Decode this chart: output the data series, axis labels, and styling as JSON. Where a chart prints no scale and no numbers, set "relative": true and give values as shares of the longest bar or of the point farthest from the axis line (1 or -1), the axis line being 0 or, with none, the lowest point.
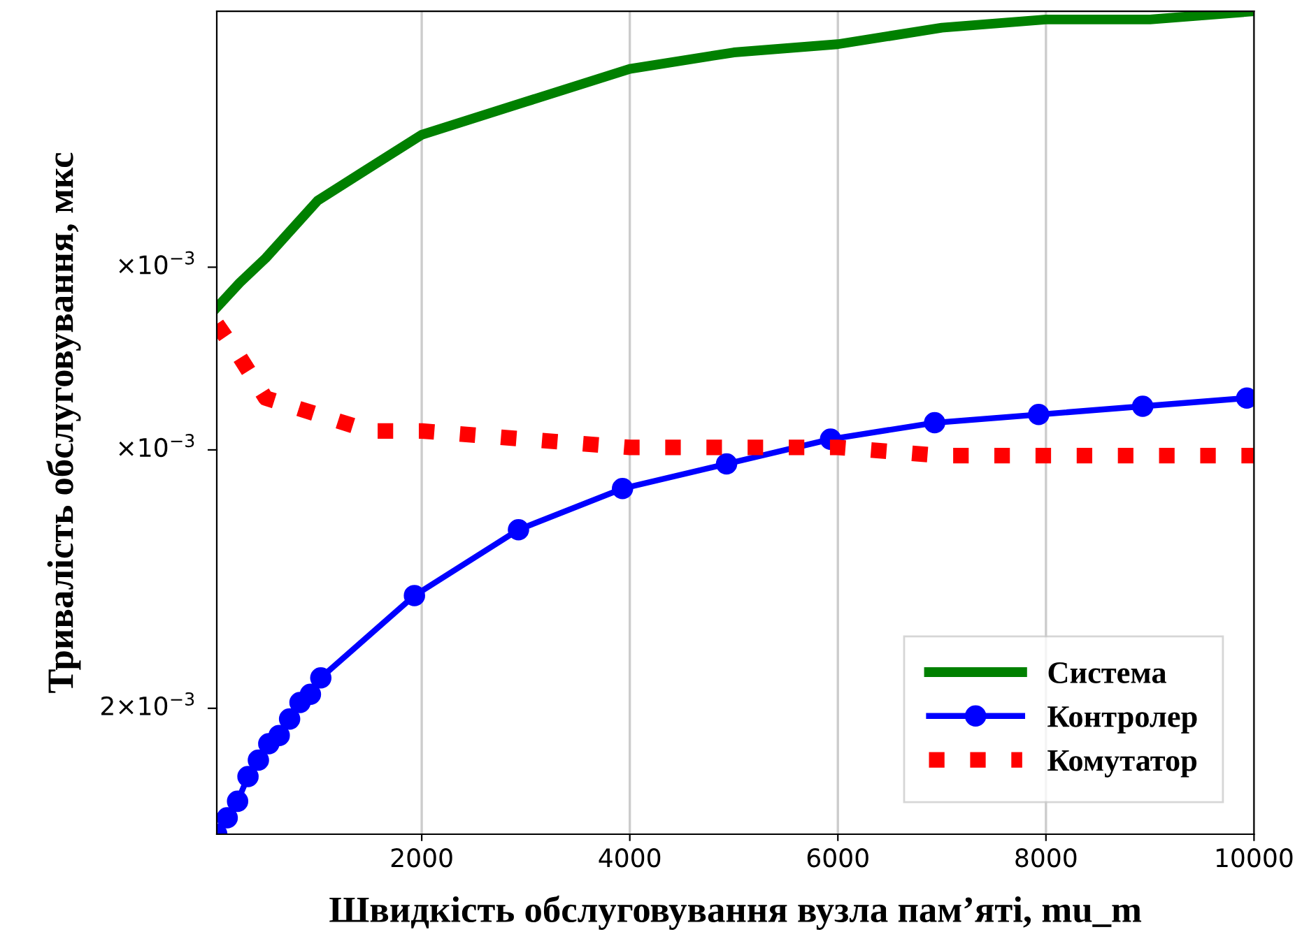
{
  "chart_data": {
    "type": "line",
    "xlabel": "Швидкість обслуговування вузла пам’яті, mu_m",
    "ylabel": "Тривалість обслуговування, мкс",
    "relative": true,
    "grid": "x",
    "legend": "bottom right",
    "xlim": [
      30,
      10000
    ],
    "xticks": [
      2000,
      4000,
      6000,
      8000,
      10000
    ],
    "annotations": [
      "2×10$^{−3}$",
      "×10$^{−3}$",
      "×10$^{−3}$"
    ],
    "series": [
      {
        "name": "Система",
        "color": "#008000",
        "line_style": "solid",
        "marker": "none",
        "x": [
          30,
          250,
          500,
          1000,
          1500,
          2000,
          3000,
          4000,
          5000,
          6000,
          7000,
          8000,
          9000,
          10000
        ],
        "values": [
          0.64,
          0.67,
          0.7,
          0.77,
          0.81,
          0.85,
          0.89,
          0.93,
          0.95,
          0.96,
          0.98,
          0.99,
          0.99,
          1
        ]
      },
      {
        "name": "Контролер",
        "color": "#0000ff",
        "line_style": "solid",
        "marker": "circle",
        "x": [
          30,
          130,
          230,
          330,
          430,
          530,
          630,
          730,
          830,
          930,
          1030,
          1930,
          2930,
          3930,
          4930,
          5930,
          6930,
          7930,
          8930,
          9930
        ],
        "values": [
          0,
          0.02,
          0.04,
          0.07,
          0.09,
          0.11,
          0.12,
          0.14,
          0.16,
          0.17,
          0.19,
          0.29,
          0.37,
          0.42,
          0.45,
          0.48,
          0.5,
          0.51,
          0.52,
          0.53
        ]
      },
      {
        "name": "Комутатор",
        "color": "#ff0000",
        "line_style": "dotted",
        "marker": "none",
        "x": [
          30,
          250,
          500,
          1000,
          1500,
          2000,
          3000,
          4000,
          5000,
          6000,
          7000,
          8000,
          10000
        ],
        "values": [
          0.62,
          0.58,
          0.53,
          0.51,
          0.49,
          0.49,
          0.48,
          0.47,
          0.47,
          0.47,
          0.46,
          0.46,
          0.46
        ]
      }
    ]
  }
}
